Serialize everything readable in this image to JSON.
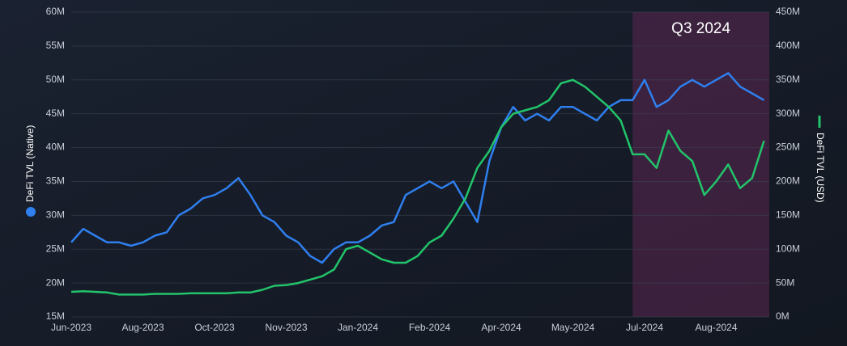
{
  "chart_data": {
    "type": "line",
    "annotation": "Q3 2024",
    "highlight_from": 47,
    "categories": [
      "Jun-2023",
      null,
      null,
      null,
      null,
      null,
      "Aug-2023",
      null,
      null,
      null,
      null,
      null,
      "Oct-2023",
      null,
      null,
      null,
      null,
      null,
      "Nov-2023",
      null,
      null,
      null,
      null,
      null,
      "Jan-2024",
      null,
      null,
      null,
      null,
      null,
      "Feb-2024",
      null,
      null,
      null,
      null,
      null,
      "Apr-2024",
      null,
      null,
      null,
      null,
      null,
      "May-2024",
      null,
      null,
      null,
      null,
      null,
      "Jul-2024",
      null,
      null,
      null,
      null,
      null,
      "Aug-2024",
      null,
      null,
      null,
      null
    ],
    "series": [
      {
        "name": "DeFi TVL (Native)",
        "color": "#2f7fef",
        "axis": "y",
        "values": [
          26000000,
          28000000,
          27000000,
          26000000,
          26000000,
          25500000,
          26000000,
          27000000,
          27500000,
          30000000,
          31000000,
          32500000,
          33000000,
          34000000,
          35500000,
          33000000,
          30000000,
          29000000,
          27000000,
          26000000,
          24000000,
          23000000,
          25000000,
          26000000,
          26000000,
          27000000,
          28500000,
          29000000,
          33000000,
          34000000,
          35000000,
          34000000,
          35000000,
          32000000,
          29000000,
          38000000,
          43000000,
          46000000,
          44000000,
          45000000,
          44000000,
          46000000,
          46000000,
          45000000,
          44000000,
          46000000,
          47000000,
          47000000,
          50000000,
          46000000,
          47000000,
          49000000,
          50000000,
          49000000,
          50000000,
          51000000,
          49000000,
          48000000,
          47000000
        ]
      },
      {
        "name": "DeFi TVL (USD)",
        "color": "#22c46a",
        "axis": "y2",
        "values": [
          37000000,
          38000000,
          37000000,
          36000000,
          33000000,
          33000000,
          33000000,
          34000000,
          34000000,
          34000000,
          35000000,
          35000000,
          35000000,
          35000000,
          36000000,
          36000000,
          40000000,
          46000000,
          47000000,
          50000000,
          55000000,
          60000000,
          70000000,
          100000000,
          105000000,
          95000000,
          85000000,
          80000000,
          80000000,
          90000000,
          110000000,
          120000000,
          145000000,
          175000000,
          220000000,
          245000000,
          280000000,
          300000000,
          305000000,
          310000000,
          320000000,
          345000000,
          350000000,
          340000000,
          325000000,
          310000000,
          290000000,
          240000000,
          240000000,
          220000000,
          275000000,
          245000000,
          230000000,
          180000000,
          200000000,
          225000000,
          190000000,
          205000000,
          260000000
        ]
      }
    ],
    "ylim": [
      15000000,
      60000000
    ],
    "yticks": [
      {
        "value": 15000000,
        "label": "15M"
      },
      {
        "value": 20000000,
        "label": "20M"
      },
      {
        "value": 25000000,
        "label": "25M"
      },
      {
        "value": 30000000,
        "label": "30M"
      },
      {
        "value": 35000000,
        "label": "35M"
      },
      {
        "value": 40000000,
        "label": "40M"
      },
      {
        "value": 45000000,
        "label": "45M"
      },
      {
        "value": 50000000,
        "label": "50M"
      },
      {
        "value": 55000000,
        "label": "55M"
      },
      {
        "value": 60000000,
        "label": "60M"
      }
    ],
    "y2lim": [
      0,
      450000000
    ],
    "y2ticks": [
      {
        "value": 0,
        "label": "0M"
      },
      {
        "value": 50000000,
        "label": "50M"
      },
      {
        "value": 100000000,
        "label": "100M"
      },
      {
        "value": 150000000,
        "label": "150M"
      },
      {
        "value": 200000000,
        "label": "200M"
      },
      {
        "value": 250000000,
        "label": "250M"
      },
      {
        "value": 300000000,
        "label": "300M"
      },
      {
        "value": 350000000,
        "label": "350M"
      },
      {
        "value": 400000000,
        "label": "400M"
      },
      {
        "value": 450000000,
        "label": "450M"
      }
    ],
    "grid": true
  }
}
